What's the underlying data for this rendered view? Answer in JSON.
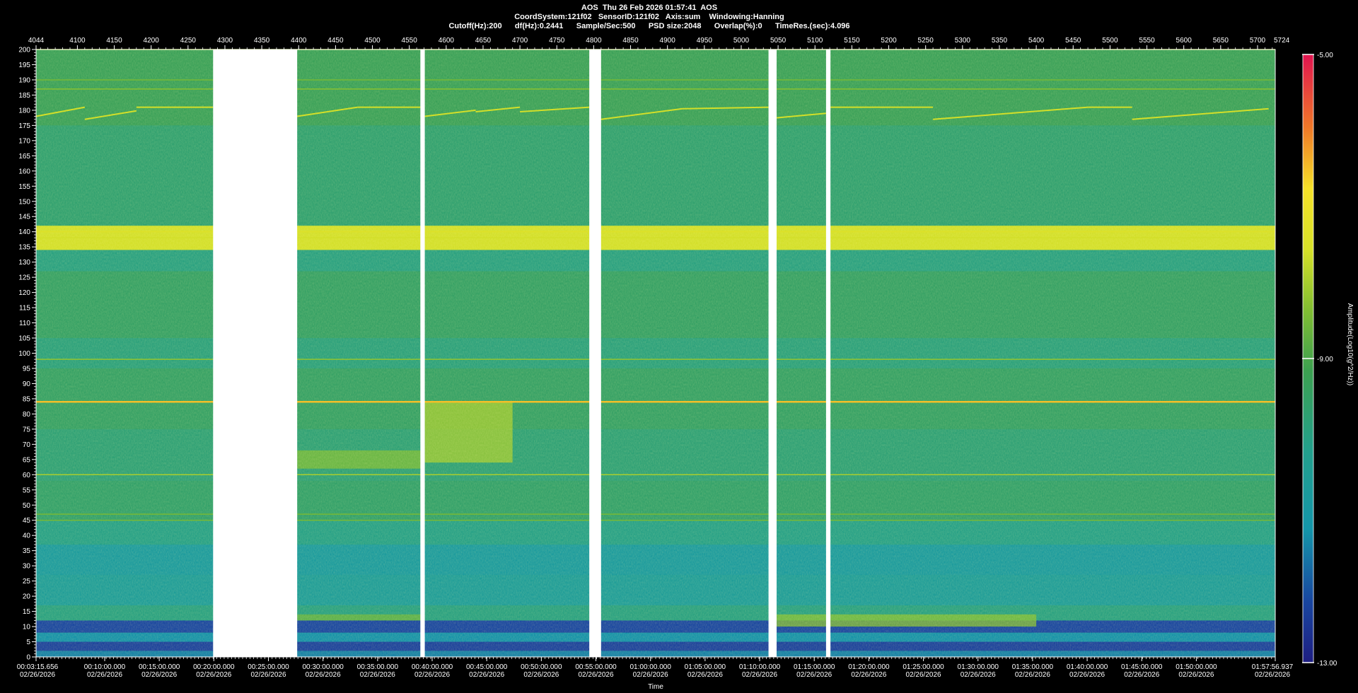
{
  "header": {
    "line1": "AOS  Thu 26 Feb 2026 01:57:41  AOS",
    "line2": "CoordSystem:121f02   SensorID:121f02   Axis:sum    Windowing:Hanning",
    "line3": "Cutoff(Hz):200      df(Hz):0.2441      Sample/Sec:500      PSD size:2048      Overlap(%):0      TimeRes.(sec):4.096"
  },
  "chart_data": {
    "type": "heatmap",
    "xlabel": "Time",
    "ylabel": "",
    "colorbar_label": "Amplitude(Log10(g^2/Hz))",
    "colorbar_range": [
      -13.0,
      -5.0
    ],
    "colorbar_ticks": [
      "-5.00",
      "-9.00",
      "-13.00"
    ],
    "colorbar_tick_values": [
      -5,
      -9,
      -13
    ],
    "colors": {
      "background": "#000000",
      "gap": "#ffffff",
      "mid_green": "#3f9a57",
      "yellow": "#f2ef2c",
      "red": "#e3134a",
      "blue": "#1b3c8f",
      "teal": "#1aa29a"
    },
    "ylim": [
      0,
      200
    ],
    "yticks": [
      0,
      5,
      10,
      15,
      20,
      25,
      30,
      35,
      40,
      45,
      50,
      55,
      60,
      65,
      70,
      75,
      80,
      85,
      90,
      95,
      100,
      105,
      110,
      115,
      120,
      125,
      130,
      135,
      140,
      145,
      150,
      155,
      160,
      165,
      170,
      175,
      180,
      185,
      190,
      195,
      200
    ],
    "xlim_index": [
      4044,
      5724
    ],
    "top_ticks": [
      4044,
      4100,
      4150,
      4200,
      4250,
      4300,
      4350,
      4400,
      4450,
      4500,
      4550,
      4600,
      4650,
      4700,
      4750,
      4800,
      4850,
      4900,
      4950,
      5000,
      5050,
      5100,
      5150,
      5200,
      5250,
      5300,
      5350,
      5400,
      5450,
      5500,
      5550,
      5600,
      5650,
      5700
    ],
    "top_end_label": "5724",
    "time_labels": [
      {
        "index": 4044,
        "time": "00:03:15.656",
        "date": "02/26/2026",
        "edge": "start"
      },
      {
        "index": 4137,
        "time": "00:10:00.000",
        "date": "02/26/2026"
      },
      {
        "index": 4211,
        "time": "00:15:00.000",
        "date": "02/26/2026"
      },
      {
        "index": 4285,
        "time": "00:20:00.000",
        "date": "02/26/2026"
      },
      {
        "index": 4359,
        "time": "00:25:00.000",
        "date": "02/26/2026"
      },
      {
        "index": 4433,
        "time": "00:30:00.000",
        "date": "02/26/2026"
      },
      {
        "index": 4507,
        "time": "00:35:00.000",
        "date": "02/26/2026"
      },
      {
        "index": 4581,
        "time": "00:40:00.000",
        "date": "02/26/2026"
      },
      {
        "index": 4655,
        "time": "00:45:00.000",
        "date": "02/26/2026"
      },
      {
        "index": 4729,
        "time": "00:50:00.000",
        "date": "02/26/2026"
      },
      {
        "index": 4803,
        "time": "00:55:00.000",
        "date": "02/26/2026"
      },
      {
        "index": 4877,
        "time": "01:00:00.000",
        "date": "02/26/2026"
      },
      {
        "index": 4951,
        "time": "01:05:00.000",
        "date": "02/26/2026"
      },
      {
        "index": 5025,
        "time": "01:10:00.000",
        "date": "02/26/2026"
      },
      {
        "index": 5099,
        "time": "01:15:00.000",
        "date": "02/26/2026"
      },
      {
        "index": 5173,
        "time": "01:20:00.000",
        "date": "02/26/2026"
      },
      {
        "index": 5247,
        "time": "01:25:00.000",
        "date": "02/26/2026"
      },
      {
        "index": 5321,
        "time": "01:30:00.000",
        "date": "02/26/2026"
      },
      {
        "index": 5395,
        "time": "01:35:00.000",
        "date": "02/26/2026"
      },
      {
        "index": 5469,
        "time": "01:40:00.000",
        "date": "02/26/2026"
      },
      {
        "index": 5543,
        "time": "01:45:00.000",
        "date": "02/26/2026"
      },
      {
        "index": 5617,
        "time": "01:50:00.000",
        "date": "02/26/2026"
      },
      {
        "index": 5724,
        "time": "01:57:56.937",
        "date": "02/26/2026",
        "edge": "end"
      }
    ],
    "gaps_index": [
      [
        4284,
        4398
      ],
      [
        4565,
        4571
      ],
      [
        4794,
        4810
      ],
      [
        5037,
        5048
      ],
      [
        5115,
        5121
      ]
    ],
    "bands_hz": [
      {
        "lo": 0,
        "hi": 2,
        "level": -11.5
      },
      {
        "lo": 2,
        "hi": 5,
        "level": -12.3
      },
      {
        "lo": 5,
        "hi": 8,
        "level": -11.3
      },
      {
        "lo": 8,
        "hi": 12,
        "level": -12.2
      },
      {
        "lo": 12,
        "hi": 17,
        "level": -10.0
      },
      {
        "lo": 17,
        "hi": 27,
        "level": -10.6
      },
      {
        "lo": 27,
        "hi": 37,
        "level": -10.8
      },
      {
        "lo": 37,
        "hi": 45,
        "level": -10.1
      },
      {
        "lo": 45,
        "hi": 58,
        "level": -9.6
      },
      {
        "lo": 58,
        "hi": 75,
        "level": -9.8
      },
      {
        "lo": 75,
        "hi": 95,
        "level": -9.5
      },
      {
        "lo": 95,
        "hi": 105,
        "level": -9.9
      },
      {
        "lo": 105,
        "hi": 127,
        "level": -9.5
      },
      {
        "lo": 127,
        "hi": 134,
        "level": -10.0
      },
      {
        "lo": 134,
        "hi": 142,
        "level": -7.6
      },
      {
        "lo": 142,
        "hi": 175,
        "level": -9.7
      },
      {
        "lo": 175,
        "hi": 200,
        "level": -9.3
      }
    ],
    "tonal_lines": [
      {
        "freq_hz": 84,
        "level": -6.5
      },
      {
        "freq_hz": 98,
        "level": -8.2
      },
      {
        "freq_hz": 60,
        "level": -8.0
      },
      {
        "freq_hz": 187,
        "level": -8.3
      },
      {
        "freq_hz": 190,
        "level": -8.5
      },
      {
        "freq_hz": 47,
        "level": -8.5
      },
      {
        "freq_hz": 45,
        "level": -8.5
      },
      {
        "freq_hz": 140,
        "level": -7.4
      },
      {
        "freq_hz": 138,
        "level": -7.6
      },
      {
        "freq_hz": 200,
        "level": -8.0
      }
    ],
    "drift_segments": [
      {
        "x": [
          4044,
          4110
        ],
        "y": [
          178,
          181
        ]
      },
      {
        "x": [
          4110,
          4180
        ],
        "y": [
          177,
          179.8
        ]
      },
      {
        "x": [
          4180,
          4284
        ],
        "y": [
          181,
          181
        ]
      },
      {
        "x": [
          4398,
          4480
        ],
        "y": [
          178,
          181
        ]
      },
      {
        "x": [
          4480,
          4565
        ],
        "y": [
          181,
          181
        ]
      },
      {
        "x": [
          4571,
          4640
        ],
        "y": [
          178,
          180
        ]
      },
      {
        "x": [
          4640,
          4700
        ],
        "y": [
          179.5,
          181
        ]
      },
      {
        "x": [
          4700,
          4794
        ],
        "y": [
          179.5,
          181
        ]
      },
      {
        "x": [
          4810,
          4920
        ],
        "y": [
          177,
          180.5
        ]
      },
      {
        "x": [
          4920,
          5037
        ],
        "y": [
          180.5,
          181
        ]
      },
      {
        "x": [
          5048,
          5115
        ],
        "y": [
          177.5,
          179
        ]
      },
      {
        "x": [
          5121,
          5260
        ],
        "y": [
          181,
          181
        ]
      },
      {
        "x": [
          5260,
          5470
        ],
        "y": [
          177,
          181
        ]
      },
      {
        "x": [
          5470,
          5530
        ],
        "y": [
          181,
          181
        ]
      },
      {
        "x": [
          5530,
          5715
        ],
        "y": [
          177,
          180.5
        ]
      }
    ],
    "patches": [
      {
        "x": [
          4571,
          4690
        ],
        "y": [
          64,
          84
        ],
        "level": -8.0
      },
      {
        "x": [
          4398,
          4571
        ],
        "y": [
          62,
          68
        ],
        "level": -8.4
      },
      {
        "x": [
          4398,
          4571
        ],
        "y": [
          12,
          14
        ],
        "level": -8.6
      },
      {
        "x": [
          5048,
          5400
        ],
        "y": [
          10,
          14
        ],
        "level": -8.3
      }
    ]
  }
}
